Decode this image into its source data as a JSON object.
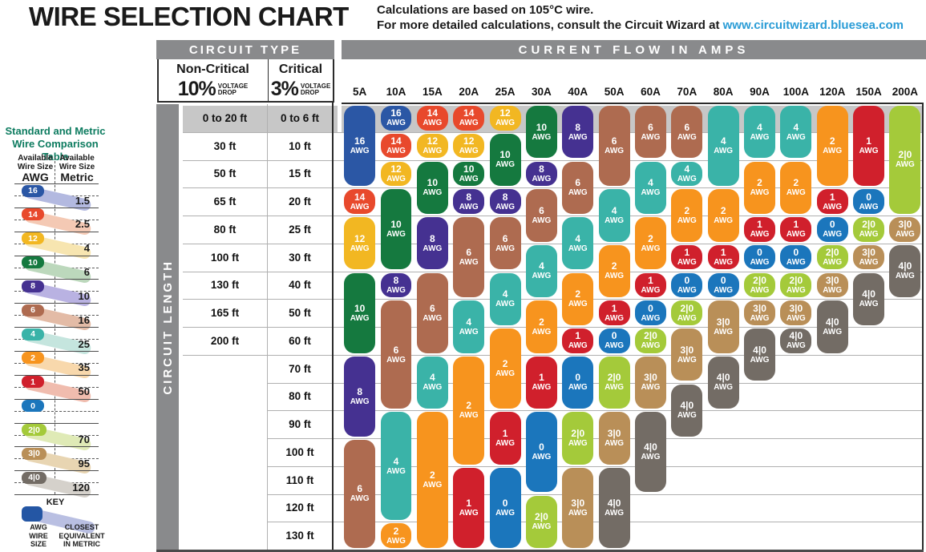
{
  "header": {
    "title": "WIRE SELECTION CHART",
    "note_line1": "Calculations are based on 105°C wire.",
    "note_line2": "For more detailed calculations, consult the Circuit Wizard at ",
    "note_link": "www.circuitwizard.bluesea.com"
  },
  "table": {
    "circuit_type": "CIRCUIT TYPE",
    "amps_header": "CURRENT FLOW IN AMPS",
    "non_critical_title": "Non-Critical",
    "non_critical_pct": "10%",
    "critical_title": "Critical",
    "critical_pct": "3%",
    "voltage_drop": "VOLTAGE\nDROP",
    "circuit_length": "CIRCUIT LENGTH",
    "awg_suffix": "AWG"
  },
  "comparison": {
    "title": "Standard and Metric\nWire Comparison Table",
    "awg_header_top": "Available\nWire Size",
    "awg_header_label": "AWG",
    "metric_header_top": "Available\nWire Size",
    "metric_header_label": "Metric",
    "rows": [
      {
        "awg": "16",
        "metric": "1.5"
      },
      {
        "awg": "14",
        "metric": "2.5"
      },
      {
        "awg": "12",
        "metric": "4"
      },
      {
        "awg": "10",
        "metric": "6"
      },
      {
        "awg": "8",
        "metric": "10"
      },
      {
        "awg": "6",
        "metric": "16"
      },
      {
        "awg": "4",
        "metric": "25"
      },
      {
        "awg": "2",
        "metric": "35"
      },
      {
        "awg": "1",
        "metric": "50"
      },
      {
        "awg": "0",
        "metric": ""
      },
      {
        "awg": "2|0",
        "metric": "70"
      },
      {
        "awg": "3|0",
        "metric": "95"
      },
      {
        "awg": "4|0",
        "metric": "120"
      }
    ],
    "key": {
      "title": "KEY",
      "left_label": "AWG\nWIRE\nSIZE",
      "right_label": "CLOSEST\nEQUIVALENT\nIN METRIC"
    }
  },
  "colors": {
    "header_gray": "#898a8c",
    "row_band_gray": "#c7c7c7",
    "grid_line": "#b0b0b0",
    "dark_border": "#2b2b2b",
    "link_blue": "#2a9cd6",
    "sidebar_green": "#0c7b5f",
    "key_awg_fill": "#2456a4",
    "key_band_fill": "#b9bfe2",
    "wire": {
      "16": "#2b57a5",
      "14": "#e8492c",
      "12": "#f2b722",
      "10": "#15793f",
      "8": "#453191",
      "6": "#ae6b50",
      "4": "#3ab3a8",
      "2": "#f7941e",
      "1": "#d0202c",
      "0": "#1b76bc",
      "2|0": "#a4ca3a",
      "3|0": "#b98f58",
      "4|0": "#736c65"
    },
    "band": {
      "16": "#b3b9e0",
      "14": "#f4c9b4",
      "12": "#f7e5b0",
      "10": "#bcd8bc",
      "8": "#b9b2e2",
      "6": "#e3bba6",
      "4": "#c5e5de",
      "2": "#f8d8ac",
      "1": "#f0bcae",
      "0": "",
      "2|0": "#dfeab6",
      "3|0": "#e8d5b2",
      "4|0": "#d5d1cb"
    }
  },
  "chart_data": {
    "type": "heatmap",
    "title": "WIRE SELECTION CHART",
    "x_axis_label": "CURRENT FLOW IN AMPS",
    "y_axis_label": "CIRCUIT LENGTH",
    "columns": [
      "5A",
      "10A",
      "15A",
      "20A",
      "25A",
      "30A",
      "40A",
      "50A",
      "60A",
      "70A",
      "80A",
      "90A",
      "100A",
      "120A",
      "150A",
      "200A"
    ],
    "rows_non_critical_10pct_drop": [
      "0 to 20 ft",
      "30 ft",
      "50 ft",
      "65 ft",
      "80 ft",
      "100 ft",
      "130 ft",
      "165 ft",
      "200 ft"
    ],
    "rows_critical_3pct_drop": [
      "0 to 6 ft",
      "10 ft",
      "15 ft",
      "20 ft",
      "25 ft",
      "30 ft",
      "40 ft",
      "50 ft",
      "60 ft",
      "70 ft",
      "80 ft",
      "90 ft",
      "100 ft",
      "110 ft",
      "120 ft",
      "130 ft"
    ],
    "highlighted_row": 1,
    "cells_awg_by_column": {
      "5A": [
        {
          "awg": "16",
          "from": 1,
          "to": 3
        },
        {
          "awg": "14",
          "from": 4,
          "to": 4
        },
        {
          "awg": "12",
          "from": 5,
          "to": 6
        },
        {
          "awg": "10",
          "from": 7,
          "to": 9
        },
        {
          "awg": "8",
          "from": 10,
          "to": 12
        },
        {
          "awg": "6",
          "from": 13,
          "to": 16
        }
      ],
      "10A": [
        {
          "awg": "16",
          "from": 1,
          "to": 1
        },
        {
          "awg": "14",
          "from": 2,
          "to": 2
        },
        {
          "awg": "12",
          "from": 3,
          "to": 3
        },
        {
          "awg": "10",
          "from": 4,
          "to": 6
        },
        {
          "awg": "8",
          "from": 7,
          "to": 7
        },
        {
          "awg": "6",
          "from": 8,
          "to": 11
        },
        {
          "awg": "4",
          "from": 12,
          "to": 15
        },
        {
          "awg": "2",
          "from": 16,
          "to": 16
        }
      ],
      "15A": [
        {
          "awg": "14",
          "from": 1,
          "to": 1
        },
        {
          "awg": "12",
          "from": 2,
          "to": 2
        },
        {
          "awg": "10",
          "from": 3,
          "to": 4
        },
        {
          "awg": "8",
          "from": 5,
          "to": 6
        },
        {
          "awg": "6",
          "from": 7,
          "to": 9
        },
        {
          "awg": "4",
          "from": 10,
          "to": 11
        },
        {
          "awg": "2",
          "from": 12,
          "to": 16
        }
      ],
      "20A": [
        {
          "awg": "14",
          "from": 1,
          "to": 1
        },
        {
          "awg": "12",
          "from": 2,
          "to": 2
        },
        {
          "awg": "10",
          "from": 3,
          "to": 3
        },
        {
          "awg": "8",
          "from": 4,
          "to": 4
        },
        {
          "awg": "6",
          "from": 5,
          "to": 7
        },
        {
          "awg": "4",
          "from": 8,
          "to": 9
        },
        {
          "awg": "2",
          "from": 10,
          "to": 13
        },
        {
          "awg": "1",
          "from": 14,
          "to": 16
        }
      ],
      "25A": [
        {
          "awg": "12",
          "from": 1,
          "to": 1
        },
        {
          "awg": "10",
          "from": 2,
          "to": 3
        },
        {
          "awg": "8",
          "from": 4,
          "to": 4
        },
        {
          "awg": "6",
          "from": 5,
          "to": 6
        },
        {
          "awg": "4",
          "from": 7,
          "to": 8
        },
        {
          "awg": "2",
          "from": 9,
          "to": 11
        },
        {
          "awg": "1",
          "from": 12,
          "to": 13
        },
        {
          "awg": "0",
          "from": 14,
          "to": 16
        }
      ],
      "30A": [
        {
          "awg": "10",
          "from": 1,
          "to": 2
        },
        {
          "awg": "8",
          "from": 3,
          "to": 3
        },
        {
          "awg": "6",
          "from": 4,
          "to": 5
        },
        {
          "awg": "4",
          "from": 6,
          "to": 7
        },
        {
          "awg": "2",
          "from": 8,
          "to": 9
        },
        {
          "awg": "1",
          "from": 10,
          "to": 11
        },
        {
          "awg": "0",
          "from": 12,
          "to": 14
        },
        {
          "awg": "2|0",
          "from": 15,
          "to": 16
        }
      ],
      "40A": [
        {
          "awg": "8",
          "from": 1,
          "to": 2
        },
        {
          "awg": "6",
          "from": 3,
          "to": 4
        },
        {
          "awg": "4",
          "from": 5,
          "to": 6
        },
        {
          "awg": "2",
          "from": 7,
          "to": 8
        },
        {
          "awg": "1",
          "from": 9,
          "to": 9
        },
        {
          "awg": "0",
          "from": 10,
          "to": 11
        },
        {
          "awg": "2|0",
          "from": 12,
          "to": 13
        },
        {
          "awg": "3|0",
          "from": 14,
          "to": 16
        }
      ],
      "50A": [
        {
          "awg": "6",
          "from": 1,
          "to": 3
        },
        {
          "awg": "4",
          "from": 4,
          "to": 5
        },
        {
          "awg": "2",
          "from": 6,
          "to": 7
        },
        {
          "awg": "1",
          "from": 8,
          "to": 8
        },
        {
          "awg": "0",
          "from": 9,
          "to": 9
        },
        {
          "awg": "2|0",
          "from": 10,
          "to": 11
        },
        {
          "awg": "3|0",
          "from": 12,
          "to": 13
        },
        {
          "awg": "4|0",
          "from": 14,
          "to": 16
        }
      ],
      "60A": [
        {
          "awg": "6",
          "from": 1,
          "to": 2
        },
        {
          "awg": "4",
          "from": 3,
          "to": 4
        },
        {
          "awg": "2",
          "from": 5,
          "to": 6
        },
        {
          "awg": "1",
          "from": 7,
          "to": 7
        },
        {
          "awg": "0",
          "from": 8,
          "to": 8
        },
        {
          "awg": "2|0",
          "from": 9,
          "to": 9
        },
        {
          "awg": "3|0",
          "from": 10,
          "to": 11
        },
        {
          "awg": "4|0",
          "from": 12,
          "to": 14
        }
      ],
      "70A": [
        {
          "awg": "6",
          "from": 1,
          "to": 2
        },
        {
          "awg": "4",
          "from": 3,
          "to": 3
        },
        {
          "awg": "2",
          "from": 4,
          "to": 5
        },
        {
          "awg": "1",
          "from": 6,
          "to": 6
        },
        {
          "awg": "0",
          "from": 7,
          "to": 7
        },
        {
          "awg": "2|0",
          "from": 8,
          "to": 8
        },
        {
          "awg": "3|0",
          "from": 9,
          "to": 10
        },
        {
          "awg": "4|0",
          "from": 11,
          "to": 12
        }
      ],
      "80A": [
        {
          "awg": "4",
          "from": 1,
          "to": 3
        },
        {
          "awg": "2",
          "from": 4,
          "to": 5
        },
        {
          "awg": "1",
          "from": 6,
          "to": 6
        },
        {
          "awg": "0",
          "from": 7,
          "to": 7
        },
        {
          "awg": "3|0",
          "from": 8,
          "to": 9
        },
        {
          "awg": "4|0",
          "from": 10,
          "to": 11
        }
      ],
      "90A": [
        {
          "awg": "4",
          "from": 1,
          "to": 2
        },
        {
          "awg": "2",
          "from": 3,
          "to": 4
        },
        {
          "awg": "1",
          "from": 5,
          "to": 5
        },
        {
          "awg": "0",
          "from": 6,
          "to": 6
        },
        {
          "awg": "2|0",
          "from": 7,
          "to": 7
        },
        {
          "awg": "3|0",
          "from": 8,
          "to": 8
        },
        {
          "awg": "4|0",
          "from": 9,
          "to": 10
        }
      ],
      "100A": [
        {
          "awg": "4",
          "from": 1,
          "to": 2
        },
        {
          "awg": "2",
          "from": 3,
          "to": 4
        },
        {
          "awg": "1",
          "from": 5,
          "to": 5
        },
        {
          "awg": "0",
          "from": 6,
          "to": 6
        },
        {
          "awg": "2|0",
          "from": 7,
          "to": 7
        },
        {
          "awg": "3|0",
          "from": 8,
          "to": 8
        },
        {
          "awg": "4|0",
          "from": 9,
          "to": 9
        }
      ],
      "120A": [
        {
          "awg": "2",
          "from": 1,
          "to": 3
        },
        {
          "awg": "1",
          "from": 4,
          "to": 4
        },
        {
          "awg": "0",
          "from": 5,
          "to": 5
        },
        {
          "awg": "2|0",
          "from": 6,
          "to": 6
        },
        {
          "awg": "3|0",
          "from": 7,
          "to": 7
        },
        {
          "awg": "4|0",
          "from": 8,
          "to": 9
        }
      ],
      "150A": [
        {
          "awg": "1",
          "from": 1,
          "to": 3
        },
        {
          "awg": "0",
          "from": 4,
          "to": 4
        },
        {
          "awg": "2|0",
          "from": 5,
          "to": 5
        },
        {
          "awg": "3|0",
          "from": 6,
          "to": 6
        },
        {
          "awg": "4|0",
          "from": 7,
          "to": 8
        }
      ],
      "200A": [
        {
          "awg": "2|0",
          "from": 1,
          "to": 4
        },
        {
          "awg": "3|0",
          "from": 5,
          "to": 5
        },
        {
          "awg": "4|0",
          "from": 6,
          "to": 7
        }
      ]
    }
  }
}
